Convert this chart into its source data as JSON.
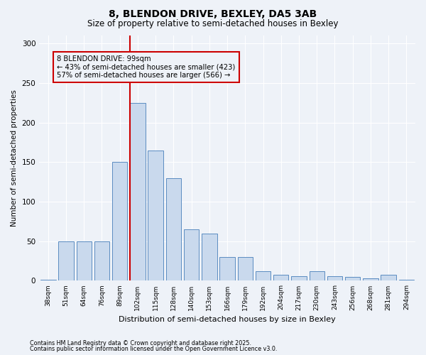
{
  "title": "8, BLENDON DRIVE, BEXLEY, DA5 3AB",
  "subtitle": "Size of property relative to semi-detached houses in Bexley",
  "xlabel": "Distribution of semi-detached houses by size in Bexley",
  "ylabel": "Number of semi-detached properties",
  "categories": [
    "38sqm",
    "51sqm",
    "64sqm",
    "76sqm",
    "89sqm",
    "102sqm",
    "115sqm",
    "128sqm",
    "140sqm",
    "153sqm",
    "166sqm",
    "179sqm",
    "192sqm",
    "204sqm",
    "217sqm",
    "230sqm",
    "243sqm",
    "256sqm",
    "268sqm",
    "281sqm",
    "294sqm"
  ],
  "values": [
    1,
    50,
    50,
    50,
    150,
    225,
    165,
    130,
    65,
    60,
    30,
    30,
    12,
    8,
    6,
    12,
    6,
    5,
    3,
    8,
    1
  ],
  "bar_color": "#c9d9ed",
  "bar_edge_color": "#5a8cc1",
  "property_line_label": "8 BLENDON DRIVE: 99sqm",
  "annotation_smaller": "← 43% of semi-detached houses are smaller (423)",
  "annotation_larger": "57% of semi-detached houses are larger (566) →",
  "annotation_box_color": "#cc0000",
  "vline_color": "#cc0000",
  "background_color": "#eef2f8",
  "grid_color": "#ffffff",
  "ylim": [
    0,
    310
  ],
  "yticks": [
    0,
    50,
    100,
    150,
    200,
    250,
    300
  ],
  "footnote1": "Contains HM Land Registry data © Crown copyright and database right 2025.",
  "footnote2": "Contains public sector information licensed under the Open Government Licence v3.0."
}
